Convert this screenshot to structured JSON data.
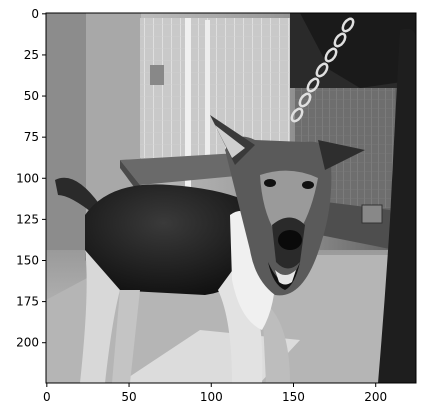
{
  "image": {
    "description": "grayscale photo",
    "colors": {
      "frame": "#000000",
      "background": "#ffffff"
    }
  },
  "axes": {
    "x_range": [
      0,
      224
    ],
    "y_range": [
      0,
      224
    ],
    "y_inverted": true,
    "x_ticks": [
      {
        "value": 0,
        "label": "0"
      },
      {
        "value": 50,
        "label": "50"
      },
      {
        "value": 100,
        "label": "100"
      },
      {
        "value": 150,
        "label": "150"
      },
      {
        "value": 200,
        "label": "200"
      }
    ],
    "y_ticks": [
      {
        "value": 0,
        "label": "0"
      },
      {
        "value": 25,
        "label": "25"
      },
      {
        "value": 50,
        "label": "50"
      },
      {
        "value": 75,
        "label": "75"
      },
      {
        "value": 100,
        "label": "100"
      },
      {
        "value": 125,
        "label": "125"
      },
      {
        "value": 150,
        "label": "150"
      },
      {
        "value": 175,
        "label": "175"
      },
      {
        "value": 200,
        "label": "200"
      }
    ]
  }
}
